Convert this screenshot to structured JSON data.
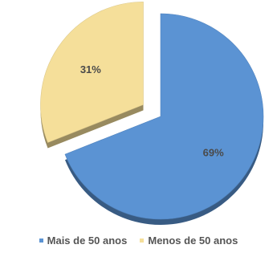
{
  "chart_data": {
    "type": "pie",
    "title": "",
    "slices": [
      {
        "name": "Mais de 50 anos",
        "value": 69,
        "label": "69%",
        "color": "#5b93d3",
        "exploded": false
      },
      {
        "name": "Menos de 50 anos",
        "value": 31,
        "label": "31%",
        "color": "#f5df9a",
        "exploded": true
      }
    ],
    "legend_position": "bottom",
    "style": "3d-exploded"
  }
}
